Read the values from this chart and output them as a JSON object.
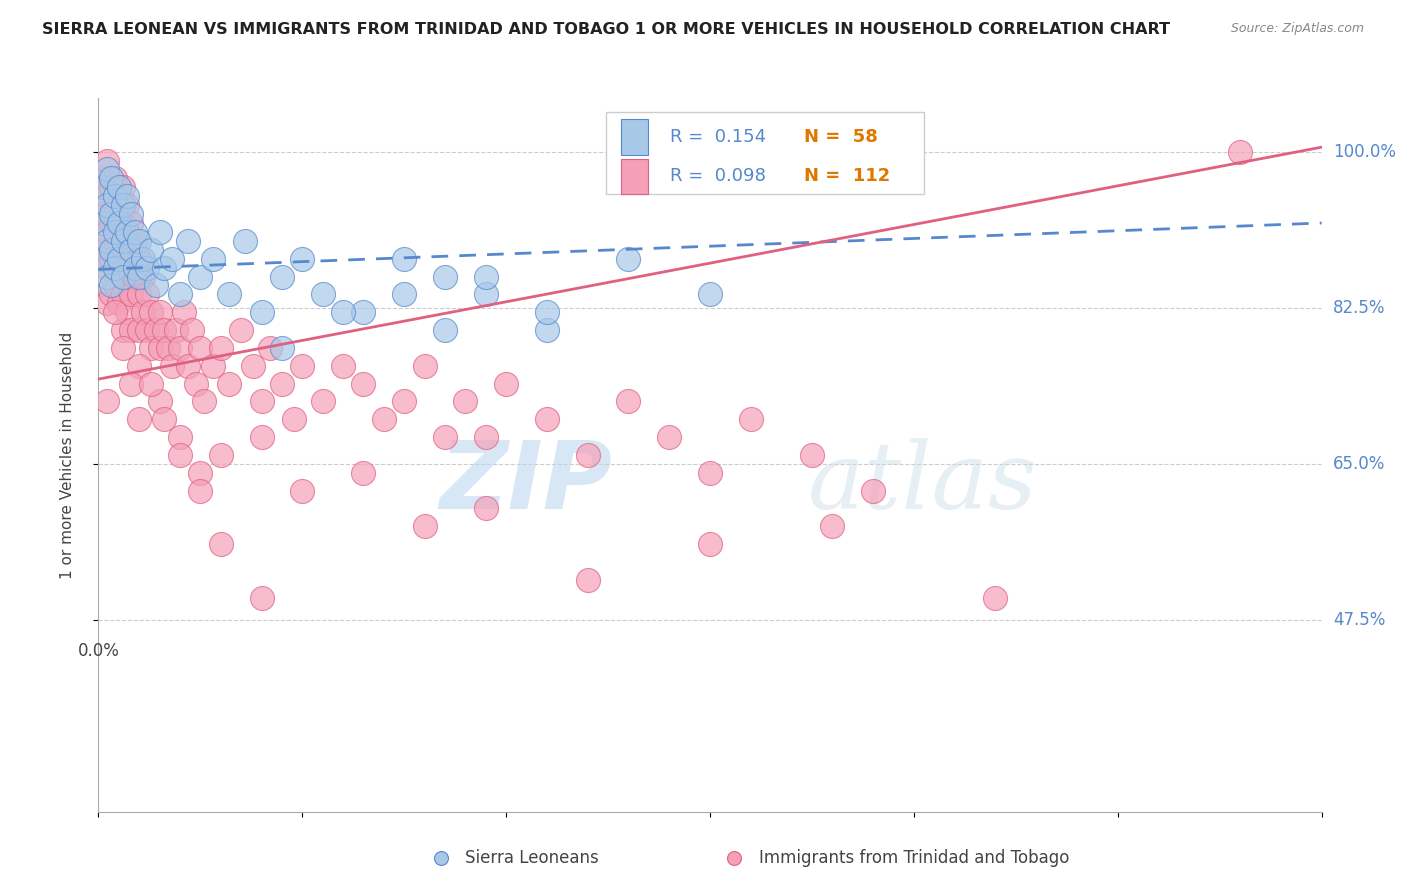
{
  "title": "SIERRA LEONEAN VS IMMIGRANTS FROM TRINIDAD AND TOBAGO 1 OR MORE VEHICLES IN HOUSEHOLD CORRELATION CHART",
  "source": "Source: ZipAtlas.com",
  "ylabel": "1 or more Vehicles in Household",
  "yticks": [
    0.475,
    0.65,
    0.825,
    1.0
  ],
  "ytick_labels": [
    "47.5%",
    "65.0%",
    "82.5%",
    "100.0%"
  ],
  "xlim": [
    0.0,
    0.3
  ],
  "ylim": [
    0.26,
    1.06
  ],
  "color_blue": "#a8c8e8",
  "color_pink": "#f4a0b8",
  "color_blue_line": "#5588cc",
  "color_pink_line": "#e06080",
  "color_grid": "#cccccc",
  "watermark_zip": "ZIP",
  "watermark_atlas": "atlas",
  "blue_trend_x0": 0.0,
  "blue_trend_y0": 0.868,
  "blue_trend_x1": 0.3,
  "blue_trend_y1": 0.92,
  "pink_trend_x0": 0.0,
  "pink_trend_y0": 0.745,
  "pink_trend_x1": 0.3,
  "pink_trend_y1": 1.005,
  "sierra_x": [
    0.001,
    0.001,
    0.001,
    0.002,
    0.002,
    0.002,
    0.002,
    0.003,
    0.003,
    0.003,
    0.003,
    0.004,
    0.004,
    0.004,
    0.005,
    0.005,
    0.005,
    0.006,
    0.006,
    0.006,
    0.007,
    0.007,
    0.008,
    0.008,
    0.009,
    0.009,
    0.01,
    0.01,
    0.011,
    0.012,
    0.013,
    0.014,
    0.015,
    0.016,
    0.018,
    0.02,
    0.022,
    0.025,
    0.028,
    0.032,
    0.036,
    0.04,
    0.045,
    0.05,
    0.055,
    0.065,
    0.075,
    0.085,
    0.095,
    0.11,
    0.045,
    0.06,
    0.075,
    0.085,
    0.095,
    0.11,
    0.13,
    0.15
  ],
  "sierra_y": [
    0.96,
    0.92,
    0.88,
    0.98,
    0.94,
    0.9,
    0.86,
    0.97,
    0.93,
    0.89,
    0.85,
    0.95,
    0.91,
    0.87,
    0.96,
    0.92,
    0.88,
    0.94,
    0.9,
    0.86,
    0.95,
    0.91,
    0.93,
    0.89,
    0.91,
    0.87,
    0.9,
    0.86,
    0.88,
    0.87,
    0.89,
    0.85,
    0.91,
    0.87,
    0.88,
    0.84,
    0.9,
    0.86,
    0.88,
    0.84,
    0.9,
    0.82,
    0.86,
    0.88,
    0.84,
    0.82,
    0.88,
    0.86,
    0.84,
    0.8,
    0.78,
    0.82,
    0.84,
    0.8,
    0.86,
    0.82,
    0.88,
    0.84
  ],
  "trinidad_x": [
    0.001,
    0.001,
    0.001,
    0.002,
    0.002,
    0.002,
    0.002,
    0.002,
    0.003,
    0.003,
    0.003,
    0.003,
    0.004,
    0.004,
    0.004,
    0.004,
    0.005,
    0.005,
    0.005,
    0.005,
    0.006,
    0.006,
    0.006,
    0.006,
    0.006,
    0.007,
    0.007,
    0.007,
    0.007,
    0.008,
    0.008,
    0.008,
    0.008,
    0.009,
    0.009,
    0.01,
    0.01,
    0.01,
    0.011,
    0.011,
    0.012,
    0.012,
    0.013,
    0.013,
    0.014,
    0.015,
    0.015,
    0.016,
    0.017,
    0.018,
    0.019,
    0.02,
    0.021,
    0.022,
    0.023,
    0.024,
    0.025,
    0.026,
    0.028,
    0.03,
    0.032,
    0.035,
    0.038,
    0.04,
    0.042,
    0.045,
    0.048,
    0.05,
    0.055,
    0.06,
    0.065,
    0.07,
    0.075,
    0.08,
    0.085,
    0.09,
    0.095,
    0.1,
    0.11,
    0.12,
    0.13,
    0.14,
    0.15,
    0.16,
    0.175,
    0.19,
    0.01,
    0.015,
    0.02,
    0.025,
    0.03,
    0.04,
    0.05,
    0.065,
    0.08,
    0.095,
    0.12,
    0.15,
    0.18,
    0.22,
    0.004,
    0.006,
    0.008,
    0.01,
    0.013,
    0.016,
    0.02,
    0.025,
    0.03,
    0.04,
    0.28,
    0.002
  ],
  "trinidad_y": [
    0.97,
    0.93,
    0.89,
    0.99,
    0.95,
    0.91,
    0.87,
    0.83,
    0.96,
    0.92,
    0.88,
    0.84,
    0.97,
    0.93,
    0.89,
    0.85,
    0.95,
    0.91,
    0.87,
    0.83,
    0.96,
    0.92,
    0.88,
    0.84,
    0.8,
    0.94,
    0.9,
    0.86,
    0.82,
    0.92,
    0.88,
    0.84,
    0.8,
    0.9,
    0.86,
    0.88,
    0.84,
    0.8,
    0.86,
    0.82,
    0.84,
    0.8,
    0.82,
    0.78,
    0.8,
    0.82,
    0.78,
    0.8,
    0.78,
    0.76,
    0.8,
    0.78,
    0.82,
    0.76,
    0.8,
    0.74,
    0.78,
    0.72,
    0.76,
    0.78,
    0.74,
    0.8,
    0.76,
    0.72,
    0.78,
    0.74,
    0.7,
    0.76,
    0.72,
    0.76,
    0.74,
    0.7,
    0.72,
    0.76,
    0.68,
    0.72,
    0.68,
    0.74,
    0.7,
    0.66,
    0.72,
    0.68,
    0.64,
    0.7,
    0.66,
    0.62,
    0.76,
    0.72,
    0.68,
    0.64,
    0.66,
    0.68,
    0.62,
    0.64,
    0.58,
    0.6,
    0.52,
    0.56,
    0.58,
    0.5,
    0.82,
    0.78,
    0.74,
    0.7,
    0.74,
    0.7,
    0.66,
    0.62,
    0.56,
    0.5,
    1.0,
    0.72
  ]
}
